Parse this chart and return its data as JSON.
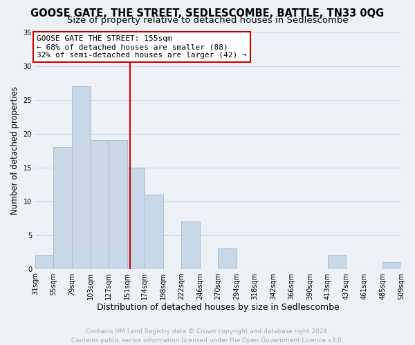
{
  "title": "GOOSE GATE, THE STREET, SEDLESCOMBE, BATTLE, TN33 0QG",
  "subtitle": "Size of property relative to detached houses in Sedlescombe",
  "xlabel": "Distribution of detached houses by size in Sedlescombe",
  "ylabel": "Number of detached properties",
  "bar_color": "#c8d8e8",
  "bar_edge_color": "#a8bece",
  "grid_color": "#c8d8e8",
  "background_color": "#eef2f7",
  "bin_edges": [
    31,
    55,
    79,
    103,
    127,
    151,
    174,
    198,
    222,
    246,
    270,
    294,
    318,
    342,
    366,
    390,
    413,
    437,
    461,
    485,
    509
  ],
  "bin_labels": [
    "31sqm",
    "55sqm",
    "79sqm",
    "103sqm",
    "127sqm",
    "151sqm",
    "174sqm",
    "198sqm",
    "222sqm",
    "246sqm",
    "270sqm",
    "294sqm",
    "318sqm",
    "342sqm",
    "366sqm",
    "390sqm",
    "413sqm",
    "437sqm",
    "461sqm",
    "485sqm",
    "509sqm"
  ],
  "counts": [
    2,
    18,
    27,
    19,
    19,
    15,
    11,
    0,
    7,
    0,
    3,
    0,
    0,
    0,
    0,
    0,
    2,
    0,
    0,
    1
  ],
  "property_line_x": 155,
  "property_line_color": "#cc0000",
  "annotation_line1": "GOOSE GATE THE STREET: 155sqm",
  "annotation_line2": "← 68% of detached houses are smaller (88)",
  "annotation_line3": "32% of semi-detached houses are larger (42) →",
  "annotation_box_color": "#ffffff",
  "annotation_box_edge": "#cc0000",
  "ylim": [
    0,
    35
  ],
  "yticks": [
    0,
    5,
    10,
    15,
    20,
    25,
    30,
    35
  ],
  "footer_text": "Contains HM Land Registry data © Crown copyright and database right 2024.\nContains public sector information licensed under the Open Government Licence v3.0.",
  "footer_color": "#aaaaaa",
  "title_fontsize": 10.5,
  "subtitle_fontsize": 9.5,
  "xlabel_fontsize": 9,
  "ylabel_fontsize": 8.5,
  "tick_fontsize": 7,
  "annotation_fontsize": 8,
  "footer_fontsize": 6.5
}
